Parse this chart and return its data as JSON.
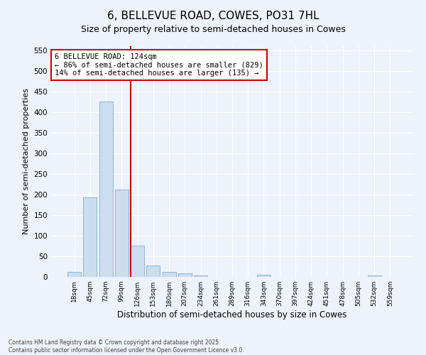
{
  "title": "6, BELLEVUE ROAD, COWES, PO31 7HL",
  "subtitle": "Size of property relative to semi-detached houses in Cowes",
  "xlabel": "Distribution of semi-detached houses by size in Cowes",
  "ylabel": "Number of semi-detached properties",
  "categories": [
    "18sqm",
    "45sqm",
    "72sqm",
    "99sqm",
    "126sqm",
    "153sqm",
    "180sqm",
    "207sqm",
    "234sqm",
    "261sqm",
    "289sqm",
    "316sqm",
    "343sqm",
    "370sqm",
    "397sqm",
    "424sqm",
    "451sqm",
    "478sqm",
    "505sqm",
    "532sqm",
    "559sqm"
  ],
  "values": [
    12,
    193,
    425,
    212,
    76,
    27,
    12,
    9,
    3,
    0,
    0,
    0,
    5,
    0,
    0,
    0,
    0,
    0,
    0,
    3,
    0
  ],
  "bar_color": "#ccddf0",
  "bar_edge_color": "#7bafd4",
  "vline_x_index": 4,
  "vline_color": "#cc0000",
  "annotation_text": "6 BELLEVUE ROAD: 124sqm\n← 86% of semi-detached houses are smaller (829)\n14% of semi-detached houses are larger (135) →",
  "annotation_box_color": "#ffffff",
  "annotation_box_edge": "#cc0000",
  "ylim": [
    0,
    560
  ],
  "yticks": [
    0,
    50,
    100,
    150,
    200,
    250,
    300,
    350,
    400,
    450,
    500,
    550
  ],
  "title_fontsize": 11,
  "subtitle_fontsize": 9,
  "xlabel_fontsize": 8.5,
  "ylabel_fontsize": 8,
  "footer1": "Contains HM Land Registry data © Crown copyright and database right 2025.",
  "footer2": "Contains public sector information licensed under the Open Government Licence v3.0.",
  "background_color": "#eef2fa",
  "plot_bg_color": "#eef2fa"
}
